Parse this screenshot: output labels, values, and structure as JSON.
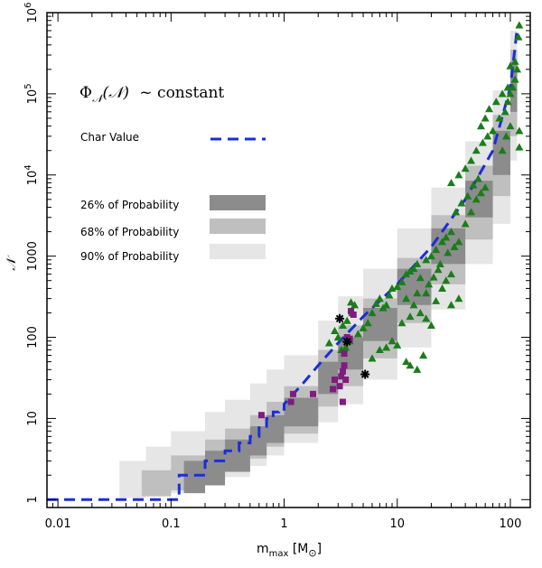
{
  "chart_data": {
    "type": "scatter",
    "xscale": "log",
    "yscale": "log",
    "xlim": [
      0.008,
      150
    ],
    "ylim": [
      0.8,
      1000000
    ],
    "xticks": [
      {
        "v": 0.01,
        "label": "0.01"
      },
      {
        "v": 0.1,
        "label": "0.1"
      },
      {
        "v": 1,
        "label": "1"
      },
      {
        "v": 10,
        "label": "10"
      },
      {
        "v": 100,
        "label": "100"
      }
    ],
    "yticks": [
      {
        "v": 1,
        "label": "1",
        "sup": ""
      },
      {
        "v": 10,
        "label": "10",
        "sup": ""
      },
      {
        "v": 100,
        "label": "100",
        "sup": ""
      },
      {
        "v": 1000,
        "label": "1000",
        "sup": ""
      },
      {
        "v": 10000,
        "label": "10",
        "sup": "4"
      },
      {
        "v": 100000,
        "label": "10",
        "sup": "5"
      },
      {
        "v": 1000000,
        "label": "10",
        "sup": "6"
      }
    ],
    "xlabel": {
      "base": "m",
      "sub": "max",
      "unit": "[M",
      "sun": "⊙",
      "close": "]"
    },
    "ylabel": "𝒩",
    "annotation": {
      "phi": "Φ",
      "sub": "𝒩",
      "arg": "(𝒩)",
      "rest": "~ constant"
    },
    "legend": {
      "char_value": "Char Value",
      "p26": "26% of Probability",
      "p68": "68% of Probability",
      "p90": "90% of Probability"
    },
    "colors": {
      "band90": "#e6e6e6",
      "band68": "#bfbfbf",
      "band26": "#8c8c8c",
      "char_line": "#1a2ed8",
      "triangles": "#1a7d1a",
      "squares": "#7f1c7d",
      "stars": "#000000"
    },
    "char_value_line": {
      "x": [
        0.008,
        0.118,
        0.118,
        0.2,
        0.2,
        0.3,
        0.3,
        0.4,
        0.4,
        0.5,
        0.5,
        0.6,
        0.6,
        0.7,
        0.7,
        0.8,
        0.8,
        0.9,
        0.9,
        1.0,
        1.0,
        1.5,
        2,
        3,
        5,
        10,
        20,
        40,
        70,
        100,
        115
      ],
      "y": [
        1,
        1,
        2,
        2,
        3,
        3,
        4,
        4,
        5,
        5,
        6,
        6,
        8,
        8,
        10,
        10,
        12,
        12,
        13,
        13,
        15,
        28,
        45,
        85,
        180,
        450,
        1300,
        5000,
        20000,
        120000,
        650000
      ]
    },
    "band26": {
      "x": [
        0.13,
        0.2,
        0.3,
        0.5,
        0.7,
        1,
        2,
        3,
        5,
        10,
        20,
        40,
        70,
        100,
        115
      ],
      "lower": [
        1.2,
        1.5,
        2.2,
        3.5,
        5,
        8,
        20,
        40,
        90,
        250,
        800,
        3000,
        10000,
        60000,
        450000
      ],
      "upper": [
        3,
        4,
        5.5,
        8,
        11,
        18,
        50,
        100,
        230,
        700,
        2200,
        8500,
        35000,
        250000,
        800000
      ]
    },
    "band68": {
      "x": [
        0.055,
        0.1,
        0.2,
        0.3,
        0.5,
        0.7,
        1,
        2,
        3,
        5,
        10,
        20,
        40,
        70,
        100,
        115
      ],
      "lower": [
        1.1,
        1.3,
        1.7,
        2.3,
        3.2,
        4.5,
        6.5,
        14,
        25,
        55,
        150,
        450,
        1600,
        5500,
        30000,
        350000
      ],
      "upper": [
        2.3,
        3.5,
        5.5,
        7.5,
        11,
        16,
        25,
        70,
        140,
        300,
        950,
        3200,
        13000,
        55000,
        350000,
        900000
      ]
    },
    "band90": {
      "x": [
        0.035,
        0.06,
        0.1,
        0.2,
        0.3,
        0.5,
        0.7,
        1,
        2,
        3,
        5,
        10,
        20,
        40,
        70,
        100,
        115
      ],
      "lower": [
        1.05,
        1.1,
        1.2,
        1.5,
        1.9,
        2.6,
        3.5,
        5,
        9,
        15,
        30,
        75,
        220,
        800,
        2500,
        15000,
        300000
      ],
      "upper": [
        3,
        4.5,
        7,
        12,
        17,
        27,
        40,
        60,
        160,
        320,
        700,
        2200,
        7000,
        26000,
        110000,
        600000,
        1000000
      ]
    },
    "triangles": [
      [
        3.2,
        70
      ],
      [
        3.5,
        75
      ],
      [
        3.8,
        90
      ],
      [
        3.0,
        100
      ],
      [
        2.8,
        120
      ],
      [
        3.3,
        140
      ],
      [
        3.6,
        160
      ],
      [
        4,
        200
      ],
      [
        4.2,
        250
      ],
      [
        3.9,
        270
      ],
      [
        4.5,
        110
      ],
      [
        5,
        130
      ],
      [
        5.5,
        150
      ],
      [
        6,
        200
      ],
      [
        6.5,
        260
      ],
      [
        7,
        300
      ],
      [
        7.5,
        230
      ],
      [
        8,
        250
      ],
      [
        8.5,
        330
      ],
      [
        9,
        400
      ],
      [
        10,
        420
      ],
      [
        11,
        480
      ],
      [
        12,
        600
      ],
      [
        13,
        650
      ],
      [
        14,
        700
      ],
      [
        15,
        800
      ],
      [
        16,
        540
      ],
      [
        18,
        900
      ],
      [
        20,
        1000
      ],
      [
        22,
        1200
      ],
      [
        25,
        1500
      ],
      [
        27,
        1700
      ],
      [
        30,
        2000
      ],
      [
        12,
        300
      ],
      [
        14,
        250
      ],
      [
        16,
        200
      ],
      [
        18,
        170
      ],
      [
        20,
        140
      ],
      [
        9,
        90
      ],
      [
        10,
        80
      ],
      [
        8,
        75
      ],
      [
        7,
        70
      ],
      [
        2.5,
        85
      ],
      [
        11,
        150
      ],
      [
        13,
        180
      ],
      [
        15,
        350
      ],
      [
        19,
        450
      ],
      [
        21,
        550
      ],
      [
        23,
        680
      ],
      [
        24,
        800
      ],
      [
        28,
        1100
      ],
      [
        32,
        1300
      ],
      [
        35,
        1500
      ],
      [
        40,
        2500
      ],
      [
        45,
        3500
      ],
      [
        50,
        5000
      ],
      [
        55,
        6000
      ],
      [
        60,
        7000
      ],
      [
        33,
        3500
      ],
      [
        37,
        4500
      ],
      [
        42,
        5500
      ],
      [
        47,
        7500
      ],
      [
        52,
        9000
      ],
      [
        30,
        8000
      ],
      [
        35,
        10000
      ],
      [
        40,
        12000
      ],
      [
        45,
        15000
      ],
      [
        50,
        20000
      ],
      [
        57,
        25000
      ],
      [
        63,
        30000
      ],
      [
        70,
        35000
      ],
      [
        80,
        50000
      ],
      [
        90,
        60000
      ],
      [
        95,
        80000
      ],
      [
        100,
        100000
      ],
      [
        105,
        120000
      ],
      [
        110,
        150000
      ],
      [
        85,
        20000
      ],
      [
        92,
        30000
      ],
      [
        100,
        40000
      ],
      [
        115,
        200000
      ],
      [
        118,
        500000
      ],
      [
        120,
        700000
      ],
      [
        100,
        220000
      ],
      [
        110,
        250000
      ],
      [
        95,
        120000
      ],
      [
        85,
        100000
      ],
      [
        75,
        80000
      ],
      [
        65,
        65000
      ],
      [
        60,
        50000
      ],
      [
        55,
        40000
      ],
      [
        120,
        35000
      ],
      [
        120,
        22000
      ],
      [
        25,
        400
      ],
      [
        27,
        500
      ],
      [
        30,
        600
      ],
      [
        18,
        350
      ],
      [
        6,
        55
      ],
      [
        12,
        50
      ],
      [
        13,
        45
      ],
      [
        15,
        40
      ],
      [
        17,
        60
      ],
      [
        30,
        250
      ],
      [
        35,
        300
      ],
      [
        22,
        280
      ]
    ],
    "squares": [
      [
        0.63,
        11
      ],
      [
        1.15,
        16
      ],
      [
        1.2,
        20
      ],
      [
        1.8,
        20
      ],
      [
        2.7,
        23
      ],
      [
        2.8,
        30
      ],
      [
        3.1,
        25
      ],
      [
        3.2,
        33
      ],
      [
        3.3,
        38
      ],
      [
        3.4,
        45
      ],
      [
        3.5,
        30
      ],
      [
        3.3,
        16
      ],
      [
        3.4,
        63
      ],
      [
        3.6,
        100
      ],
      [
        3.8,
        96
      ],
      [
        4.1,
        190
      ],
      [
        3.9,
        210
      ]
    ],
    "stars": [
      [
        3.1,
        170
      ],
      [
        3.6,
        88
      ],
      [
        5.2,
        35
      ]
    ]
  }
}
